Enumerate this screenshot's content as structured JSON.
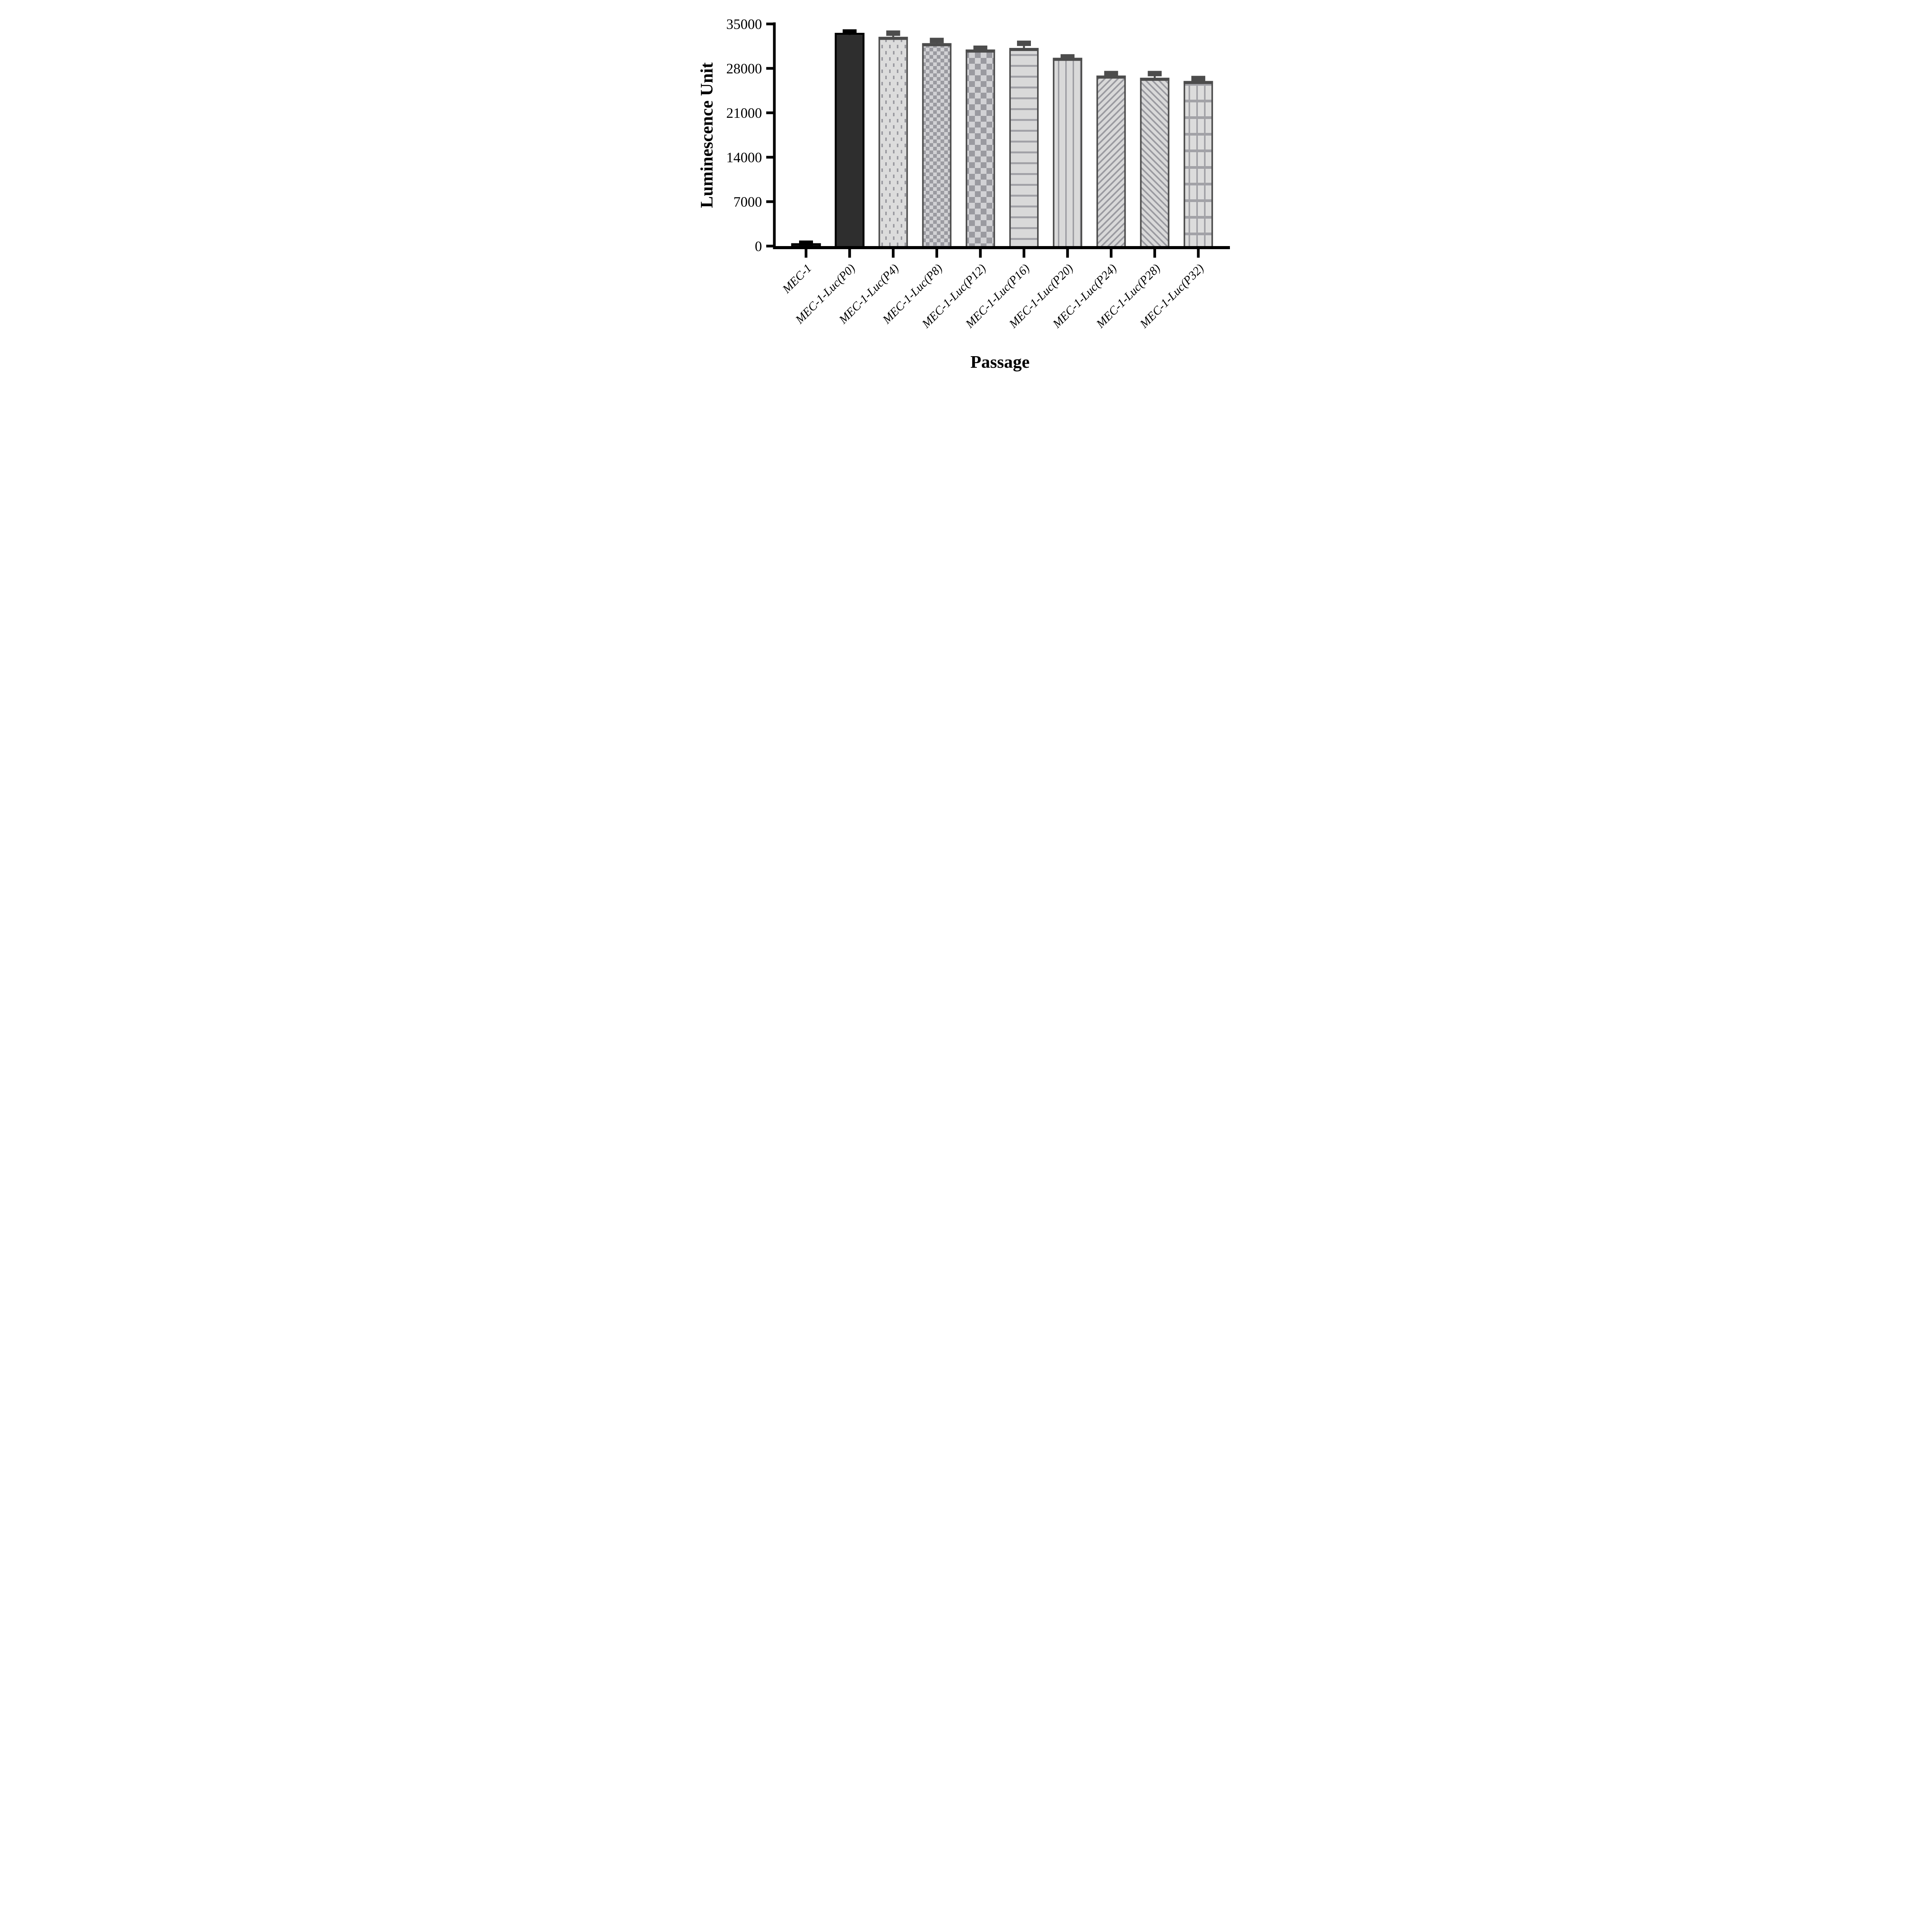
{
  "figure": {
    "background": "#ffffff",
    "description_visible_text_only": true
  },
  "chart_data": {
    "type": "bar",
    "title": "",
    "xlabel": "Passage",
    "ylabel": "Luminescence Unit",
    "categories": [
      "MEC-1",
      "MEC-1-Luc(P0)",
      "MEC-1-Luc(P4)",
      "MEC-1-Luc(P8)",
      "MEC-1-Luc(P12)",
      "MEC-1-Luc(P16)",
      "MEC-1-Luc(P20)",
      "MEC-1-Luc(P24)",
      "MEC-1-Luc(P28)",
      "MEC-1-Luc(P32)"
    ],
    "series": [
      {
        "name": "Luminescence Unit",
        "values": [
          300,
          33450,
          32850,
          31850,
          30850,
          31100,
          29550,
          26750,
          26400,
          25900
        ],
        "errors_plus": [
          150,
          280,
          700,
          550,
          320,
          850,
          260,
          430,
          780,
          500
        ]
      }
    ],
    "ylim": [
      0,
      35000
    ],
    "yticks": [
      0,
      7000,
      14000,
      21000,
      28000,
      35000
    ],
    "grid": false,
    "legend_position": "none",
    "bar_patterns": [
      "solid-black",
      "solid-near-black",
      "dots",
      "checker-fine",
      "checker-coarse",
      "hlines",
      "vlines",
      "diag-right",
      "diag-left",
      "grid"
    ],
    "colors": {
      "bar_light_fill": "#d9d9d9",
      "pattern_gray": "#9a9aa0",
      "pattern_gray_soft": "#a2a2a7",
      "dots_background": "#dcdcdc",
      "checker_light": "#d2d2d5",
      "border_dark_gray": "#4c4c4c",
      "solid_black_bar": "#111111",
      "solid_near_black_bar": "#2e2e2e",
      "axis_black": "#000000"
    }
  }
}
